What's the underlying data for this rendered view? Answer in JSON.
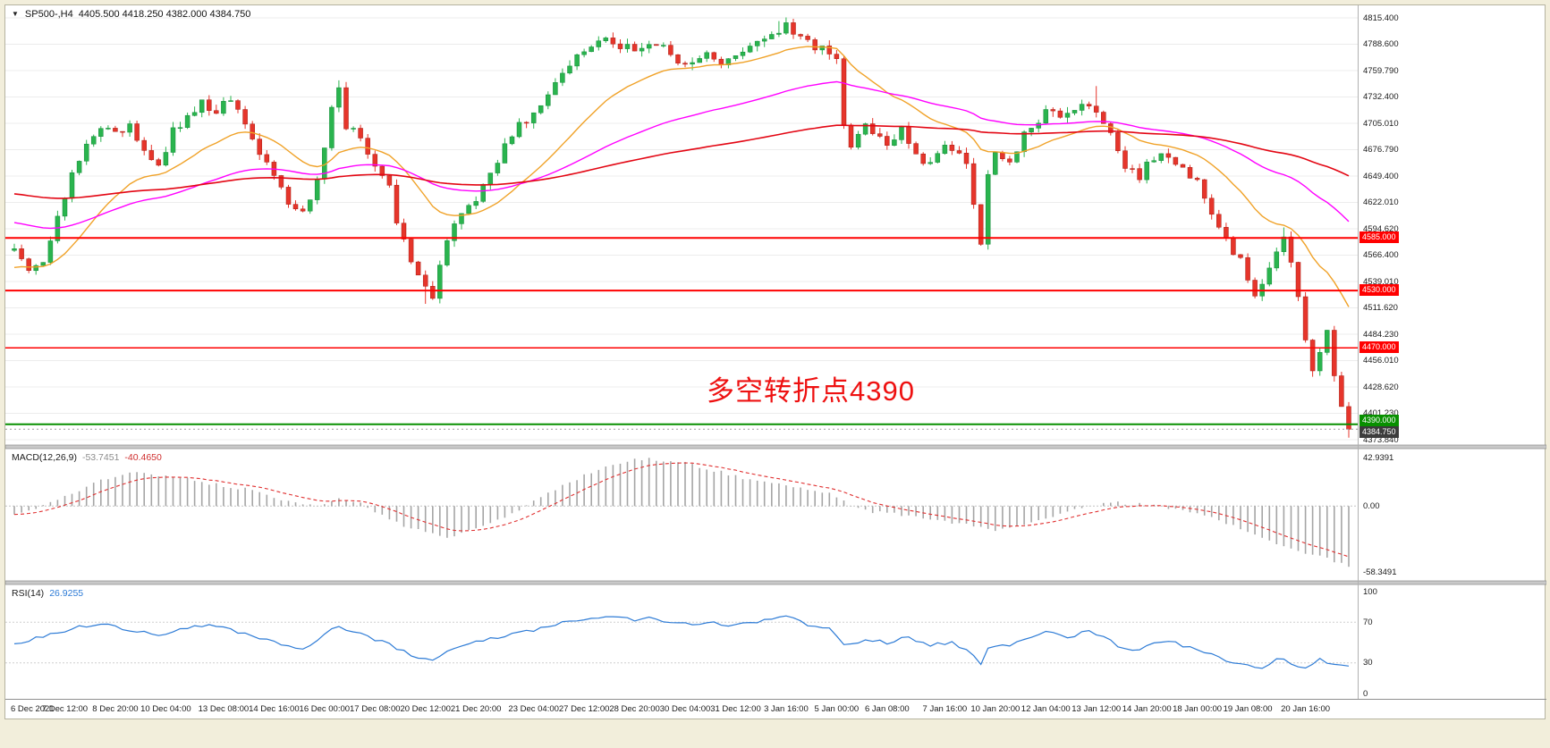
{
  "header": {
    "expand_icon": "▼",
    "symbol": "SP500-,H4",
    "ohlc": "4405.500 4418.250 4382.000 4384.750"
  },
  "annotation": {
    "text": "多空转折点4390",
    "color": "#ee1111"
  },
  "price_axis": {
    "max": 4815.4,
    "min": 4373.84,
    "labels": [
      "4815.400",
      "4788.600",
      "4759.790",
      "4732.400",
      "4705.010",
      "4676.790",
      "4649.400",
      "4622.010",
      "4594.620",
      "4566.400",
      "4539.010",
      "4511.620",
      "4484.230",
      "4456.010",
      "4428.620",
      "4401.230",
      "4373.840"
    ]
  },
  "time_axis": {
    "labels": [
      "6 Dec 2021",
      "7 Dec 12:00",
      "8 Dec 20:00",
      "10 Dec 04:00",
      "13 Dec 08:00",
      "14 Dec 16:00",
      "16 Dec 00:00",
      "17 Dec 08:00",
      "20 Dec 12:00",
      "21 Dec 20:00",
      "23 Dec 04:00",
      "27 Dec 12:00",
      "28 Dec 20:00",
      "30 Dec 04:00",
      "31 Dec 12:00",
      "3 Jan 16:00",
      "5 Jan 00:00",
      "6 Jan 08:00",
      "7 Jan 16:00",
      "10 Jan 20:00",
      "12 Jan 04:00",
      "13 Jan 12:00",
      "14 Jan 20:00",
      "18 Jan 00:00",
      "19 Jan 08:00",
      "20 Jan 16:00"
    ],
    "positions": [
      0,
      7,
      14,
      21,
      29,
      36,
      43,
      50,
      57,
      64,
      72,
      79,
      86,
      93,
      100,
      107,
      114,
      121,
      129,
      136,
      143,
      150,
      157,
      164,
      171,
      179
    ]
  },
  "chart_data": {
    "type": "candlestick",
    "symbol": "SP500-",
    "timeframe": "H4",
    "bars": 186,
    "wiggle": 9,
    "final_close": 4384.75,
    "colors": {
      "up": "#2ab44e",
      "down": "#e6352b",
      "up_border": "#128a38",
      "down_border": "#a81b12"
    },
    "price_keyframes": [
      [
        0,
        4572
      ],
      [
        2,
        4550
      ],
      [
        4,
        4562
      ],
      [
        6,
        4604
      ],
      [
        8,
        4652
      ],
      [
        10,
        4686
      ],
      [
        12,
        4700
      ],
      [
        14,
        4692
      ],
      [
        16,
        4702
      ],
      [
        18,
        4676
      ],
      [
        20,
        4662
      ],
      [
        22,
        4696
      ],
      [
        24,
        4712
      ],
      [
        26,
        4726
      ],
      [
        28,
        4716
      ],
      [
        30,
        4732
      ],
      [
        32,
        4702
      ],
      [
        34,
        4672
      ],
      [
        36,
        4650
      ],
      [
        38,
        4622
      ],
      [
        40,
        4612
      ],
      [
        42,
        4644
      ],
      [
        44,
        4722
      ],
      [
        45,
        4742
      ],
      [
        46,
        4702
      ],
      [
        48,
        4692
      ],
      [
        50,
        4662
      ],
      [
        52,
        4642
      ],
      [
        53,
        4602
      ],
      [
        55,
        4562
      ],
      [
        57,
        4532
      ],
      [
        58,
        4524
      ],
      [
        59,
        4556
      ],
      [
        60,
        4582
      ],
      [
        62,
        4612
      ],
      [
        64,
        4626
      ],
      [
        66,
        4652
      ],
      [
        68,
        4682
      ],
      [
        70,
        4702
      ],
      [
        72,
        4712
      ],
      [
        74,
        4732
      ],
      [
        76,
        4762
      ],
      [
        78,
        4776
      ],
      [
        80,
        4786
      ],
      [
        82,
        4792
      ],
      [
        84,
        4786
      ],
      [
        86,
        4782
      ],
      [
        88,
        4792
      ],
      [
        90,
        4786
      ],
      [
        92,
        4764
      ],
      [
        94,
        4772
      ],
      [
        96,
        4782
      ],
      [
        98,
        4768
      ],
      [
        100,
        4772
      ],
      [
        102,
        4782
      ],
      [
        104,
        4792
      ],
      [
        106,
        4802
      ],
      [
        107,
        4812
      ],
      [
        108,
        4796
      ],
      [
        110,
        4790
      ],
      [
        112,
        4782
      ],
      [
        114,
        4776
      ],
      [
        115,
        4702
      ],
      [
        116,
        4682
      ],
      [
        118,
        4702
      ],
      [
        120,
        4692
      ],
      [
        121,
        4682
      ],
      [
        123,
        4702
      ],
      [
        125,
        4672
      ],
      [
        127,
        4662
      ],
      [
        129,
        4682
      ],
      [
        131,
        4672
      ],
      [
        132,
        4662
      ],
      [
        133,
        4622
      ],
      [
        134,
        4582
      ],
      [
        135,
        4652
      ],
      [
        136,
        4672
      ],
      [
        138,
        4662
      ],
      [
        140,
        4692
      ],
      [
        142,
        4702
      ],
      [
        143,
        4722
      ],
      [
        145,
        4712
      ],
      [
        147,
        4722
      ],
      [
        149,
        4726
      ],
      [
        150,
        4720
      ],
      [
        152,
        4692
      ],
      [
        154,
        4662
      ],
      [
        156,
        4646
      ],
      [
        157,
        4662
      ],
      [
        159,
        4672
      ],
      [
        161,
        4664
      ],
      [
        163,
        4652
      ],
      [
        164,
        4642
      ],
      [
        166,
        4612
      ],
      [
        168,
        4582
      ],
      [
        170,
        4562
      ],
      [
        171,
        4542
      ],
      [
        172,
        4522
      ],
      [
        173,
        4536
      ],
      [
        174,
        4556
      ],
      [
        176,
        4586
      ],
      [
        177,
        4562
      ],
      [
        178,
        4522
      ],
      [
        179,
        4482
      ],
      [
        180,
        4442
      ],
      [
        181,
        4462
      ],
      [
        182,
        4486
      ],
      [
        183,
        4442
      ],
      [
        184,
        4412
      ],
      [
        185,
        4384.75
      ]
    ],
    "wick_overrides": [
      [
        45,
        "high",
        4750
      ],
      [
        57,
        "low",
        4516
      ],
      [
        106,
        "high",
        4812
      ],
      [
        107,
        "high",
        4815
      ],
      [
        134,
        "low",
        4578
      ],
      [
        150,
        "high",
        4744
      ],
      [
        176,
        "high",
        4596
      ],
      [
        185,
        "low",
        4376
      ]
    ],
    "moving_averages": [
      {
        "name": "ma-fast-orange",
        "color": "#f0a228",
        "period": 20,
        "seed": 4552,
        "width": 1.4
      },
      {
        "name": "ma-mid-magenta",
        "color": "#ff00ff",
        "period": 60,
        "seed": 4602,
        "width": 1.4
      },
      {
        "name": "ma-slow-red",
        "color": "#e30613",
        "period": 150,
        "seed": 4632,
        "width": 1.6
      }
    ],
    "levels": [
      {
        "name": "resistance-4585",
        "label": "4585.000",
        "price": 4585,
        "bg": "#ff0000",
        "line_color": "#ff0000",
        "line_width": 2,
        "draw_line": true,
        "draggable": true
      },
      {
        "name": "resistance-4530",
        "label": "4530.000",
        "price": 4530,
        "bg": "#ff0000",
        "line_color": "#ff0000",
        "line_width": 2,
        "draw_line": true,
        "draggable": true
      },
      {
        "name": "support-4470",
        "label": "4470.000",
        "price": 4470,
        "bg": "#ff0000",
        "line_color": "#ff0000",
        "line_width": 1.5,
        "draw_line": true,
        "draggable": true
      },
      {
        "name": "turning-point-4390",
        "label": "4390.000",
        "price": 4390,
        "bg": "#089000",
        "line_color": "#089000",
        "line_width": 2,
        "draw_line": true,
        "draggable": true,
        "tag_dy": -11
      },
      {
        "name": "current-price",
        "label": "4384.750",
        "price": 4384.75,
        "bg": "#3c3c3c",
        "line_color": "#9a9a9a",
        "line_width": 1,
        "dashed": true,
        "draw_line": true,
        "draggable": false,
        "tag_dy": -3
      }
    ],
    "macd": {
      "label": "MACD(12,26,9)",
      "value_main": "-53.7451",
      "value_signal": "-40.4650",
      "value_main_color": "#8c8c8c",
      "value_signal_color": "#cf2e2e",
      "max": 42.9391,
      "min": -58.3491,
      "final_main": -53.7451,
      "signal_period": 9,
      "hist_color": "#a5a5a5",
      "signal_color": "#e03030",
      "axis_labels": [
        {
          "text": "42.9391",
          "value": 42.9391
        },
        {
          "text": "0.00",
          "value": 0
        },
        {
          "text": "-58.3491",
          "value": -58.3491
        }
      ],
      "keyframes": [
        [
          0,
          -8
        ],
        [
          4,
          0
        ],
        [
          8,
          12
        ],
        [
          12,
          22
        ],
        [
          17,
          30
        ],
        [
          22,
          26
        ],
        [
          27,
          20
        ],
        [
          32,
          15
        ],
        [
          37,
          6
        ],
        [
          42,
          0
        ],
        [
          45,
          8
        ],
        [
          48,
          2
        ],
        [
          50,
          -5
        ],
        [
          55,
          -20
        ],
        [
          60,
          -28
        ],
        [
          65,
          -18
        ],
        [
          70,
          -4
        ],
        [
          75,
          15
        ],
        [
          80,
          30
        ],
        [
          85,
          40
        ],
        [
          88,
          42
        ],
        [
          93,
          38
        ],
        [
          98,
          30
        ],
        [
          103,
          22
        ],
        [
          108,
          18
        ],
        [
          113,
          12
        ],
        [
          116,
          0
        ],
        [
          118,
          -4
        ],
        [
          123,
          -8
        ],
        [
          128,
          -12
        ],
        [
          133,
          -18
        ],
        [
          136,
          -22
        ],
        [
          140,
          -16
        ],
        [
          143,
          -10
        ],
        [
          148,
          -2
        ],
        [
          151,
          3
        ],
        [
          155,
          2
        ],
        [
          158,
          0
        ],
        [
          163,
          -5
        ],
        [
          168,
          -15
        ],
        [
          173,
          -28
        ],
        [
          177,
          -38
        ],
        [
          181,
          -45
        ],
        [
          185,
          -53.7451
        ]
      ]
    },
    "rsi": {
      "label": "RSI(14)",
      "value": "26.9255",
      "value_color": "#2d7bd6",
      "color": "#2d7bd6",
      "max": 100,
      "min": 0,
      "final": 26.9255,
      "levels": [
        70,
        30
      ],
      "axis_labels": [
        {
          "text": "100",
          "value": 100
        },
        {
          "text": "70",
          "value": 70
        },
        {
          "text": "30",
          "value": 30
        },
        {
          "text": "0",
          "value": 0
        }
      ],
      "keyframes": [
        [
          0,
          48
        ],
        [
          4,
          56
        ],
        [
          8,
          64
        ],
        [
          12,
          68
        ],
        [
          16,
          62
        ],
        [
          20,
          57
        ],
        [
          24,
          65
        ],
        [
          28,
          67
        ],
        [
          32,
          58
        ],
        [
          36,
          50
        ],
        [
          40,
          44
        ],
        [
          43,
          58
        ],
        [
          45,
          66
        ],
        [
          48,
          58
        ],
        [
          52,
          48
        ],
        [
          56,
          35
        ],
        [
          58,
          33
        ],
        [
          60,
          42
        ],
        [
          64,
          50
        ],
        [
          68,
          57
        ],
        [
          72,
          62
        ],
        [
          76,
          70
        ],
        [
          80,
          74
        ],
        [
          84,
          76
        ],
        [
          86,
          72
        ],
        [
          88,
          74
        ],
        [
          92,
          68
        ],
        [
          96,
          70
        ],
        [
          100,
          67
        ],
        [
          104,
          72
        ],
        [
          107,
          77
        ],
        [
          110,
          68
        ],
        [
          113,
          64
        ],
        [
          115,
          47
        ],
        [
          118,
          53
        ],
        [
          121,
          50
        ],
        [
          124,
          55
        ],
        [
          127,
          47
        ],
        [
          130,
          51
        ],
        [
          133,
          38
        ],
        [
          134,
          30
        ],
        [
          135,
          45
        ],
        [
          138,
          48
        ],
        [
          141,
          55
        ],
        [
          143,
          60
        ],
        [
          146,
          55
        ],
        [
          149,
          61
        ],
        [
          151,
          57
        ],
        [
          153,
          47
        ],
        [
          156,
          42
        ],
        [
          158,
          49
        ],
        [
          160,
          51
        ],
        [
          163,
          45
        ],
        [
          165,
          40
        ],
        [
          168,
          32
        ],
        [
          171,
          28
        ],
        [
          173,
          24
        ],
        [
          175,
          35
        ],
        [
          177,
          30
        ],
        [
          179,
          24
        ],
        [
          181,
          33
        ],
        [
          183,
          28
        ],
        [
          185,
          26.9255
        ]
      ]
    }
  }
}
